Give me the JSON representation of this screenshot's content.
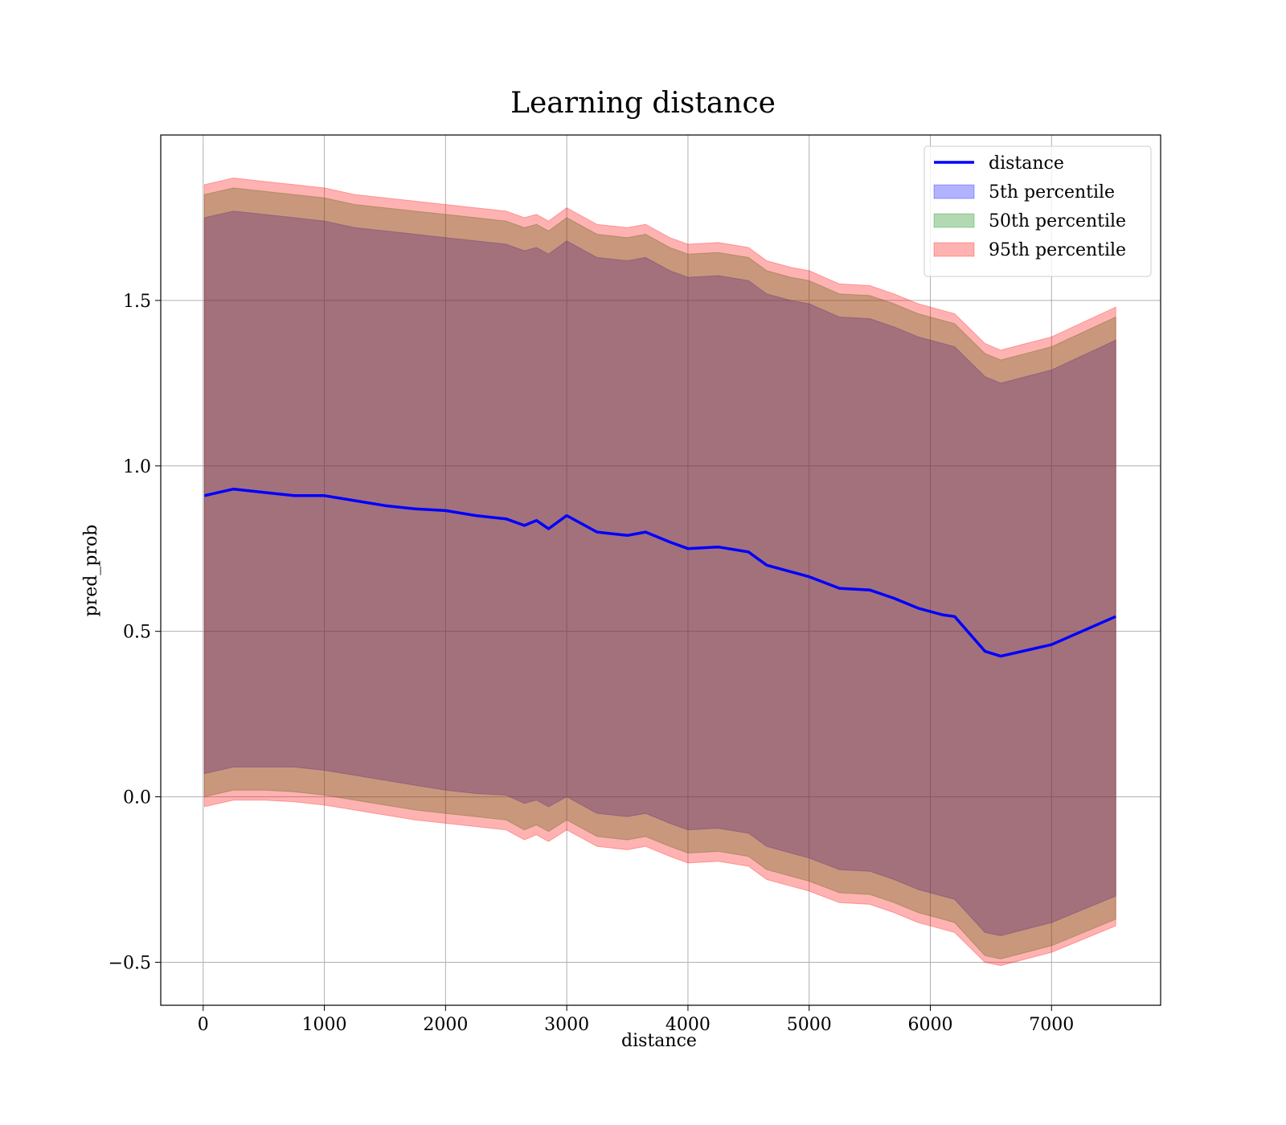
{
  "chart_data": {
    "type": "area",
    "title": "Learning distance",
    "xlabel": "distance",
    "ylabel": "pred_prob",
    "xlim": [
      -350,
      7900
    ],
    "ylim": [
      -0.63,
      2.0
    ],
    "xticks": [
      0,
      1000,
      2000,
      3000,
      4000,
      5000,
      6000,
      7000
    ],
    "xtick_labels": [
      "0",
      "1000",
      "2000",
      "3000",
      "4000",
      "5000",
      "6000",
      "7000"
    ],
    "yticks": [
      -0.5,
      0.0,
      0.5,
      1.0,
      1.5
    ],
    "ytick_labels": [
      "−0.5",
      "0.0",
      "0.5",
      "1.0",
      "1.5"
    ],
    "grid": true,
    "legend_position": "top-right",
    "x": [
      10,
      250,
      500,
      750,
      1000,
      1250,
      1500,
      1750,
      2000,
      2250,
      2500,
      2650,
      2750,
      2850,
      3000,
      3250,
      3500,
      3650,
      3850,
      4000,
      4250,
      4500,
      4650,
      4850,
      5000,
      5250,
      5500,
      5700,
      5900,
      6100,
      6200,
      6450,
      6580,
      7000,
      7530
    ],
    "series": [
      {
        "name": "distance",
        "kind": "line",
        "color": "#0000ff",
        "values": [
          0.91,
          0.93,
          0.92,
          0.91,
          0.91,
          0.895,
          0.88,
          0.87,
          0.865,
          0.85,
          0.84,
          0.82,
          0.835,
          0.81,
          0.85,
          0.8,
          0.79,
          0.8,
          0.77,
          0.75,
          0.755,
          0.74,
          0.7,
          0.68,
          0.665,
          0.63,
          0.625,
          0.6,
          0.57,
          0.55,
          0.545,
          0.44,
          0.425,
          0.46,
          0.545
        ]
      },
      {
        "name": "5th percentile",
        "kind": "band",
        "color": "#0000ff",
        "lower": [
          0.07,
          0.09,
          0.09,
          0.09,
          0.08,
          0.065,
          0.05,
          0.035,
          0.02,
          0.01,
          0.005,
          -0.02,
          -0.01,
          -0.03,
          0.0,
          -0.05,
          -0.06,
          -0.05,
          -0.08,
          -0.1,
          -0.095,
          -0.11,
          -0.15,
          -0.17,
          -0.185,
          -0.22,
          -0.225,
          -0.25,
          -0.28,
          -0.3,
          -0.31,
          -0.41,
          -0.42,
          -0.38,
          -0.3
        ],
        "upper": [
          1.75,
          1.77,
          1.76,
          1.75,
          1.74,
          1.72,
          1.71,
          1.7,
          1.69,
          1.68,
          1.67,
          1.65,
          1.66,
          1.64,
          1.68,
          1.63,
          1.62,
          1.63,
          1.59,
          1.57,
          1.575,
          1.56,
          1.52,
          1.5,
          1.49,
          1.45,
          1.445,
          1.42,
          1.39,
          1.37,
          1.36,
          1.27,
          1.25,
          1.29,
          1.38
        ]
      },
      {
        "name": "50th percentile",
        "kind": "band",
        "color": "#008000",
        "lower": [
          0.0,
          0.02,
          0.02,
          0.015,
          0.005,
          -0.01,
          -0.025,
          -0.04,
          -0.05,
          -0.06,
          -0.07,
          -0.1,
          -0.085,
          -0.105,
          -0.07,
          -0.12,
          -0.13,
          -0.12,
          -0.15,
          -0.17,
          -0.165,
          -0.18,
          -0.22,
          -0.24,
          -0.255,
          -0.29,
          -0.295,
          -0.32,
          -0.35,
          -0.37,
          -0.38,
          -0.48,
          -0.49,
          -0.45,
          -0.37
        ],
        "upper": [
          1.82,
          1.84,
          1.83,
          1.82,
          1.81,
          1.79,
          1.78,
          1.77,
          1.76,
          1.75,
          1.74,
          1.72,
          1.73,
          1.71,
          1.75,
          1.7,
          1.69,
          1.7,
          1.66,
          1.64,
          1.645,
          1.63,
          1.59,
          1.57,
          1.56,
          1.52,
          1.515,
          1.49,
          1.46,
          1.44,
          1.43,
          1.34,
          1.32,
          1.36,
          1.45
        ]
      },
      {
        "name": "95th percentile",
        "kind": "band",
        "color": "#ff0000",
        "lower": [
          -0.03,
          -0.01,
          -0.01,
          -0.015,
          -0.025,
          -0.04,
          -0.055,
          -0.07,
          -0.08,
          -0.09,
          -0.1,
          -0.13,
          -0.115,
          -0.135,
          -0.1,
          -0.15,
          -0.16,
          -0.15,
          -0.18,
          -0.2,
          -0.195,
          -0.21,
          -0.25,
          -0.27,
          -0.285,
          -0.32,
          -0.325,
          -0.35,
          -0.38,
          -0.4,
          -0.41,
          -0.5,
          -0.51,
          -0.47,
          -0.39
        ],
        "upper": [
          1.85,
          1.87,
          1.86,
          1.85,
          1.84,
          1.82,
          1.81,
          1.8,
          1.79,
          1.78,
          1.77,
          1.75,
          1.76,
          1.74,
          1.78,
          1.73,
          1.72,
          1.73,
          1.69,
          1.67,
          1.675,
          1.66,
          1.62,
          1.6,
          1.59,
          1.55,
          1.545,
          1.52,
          1.49,
          1.47,
          1.46,
          1.37,
          1.35,
          1.39,
          1.48
        ]
      }
    ]
  }
}
